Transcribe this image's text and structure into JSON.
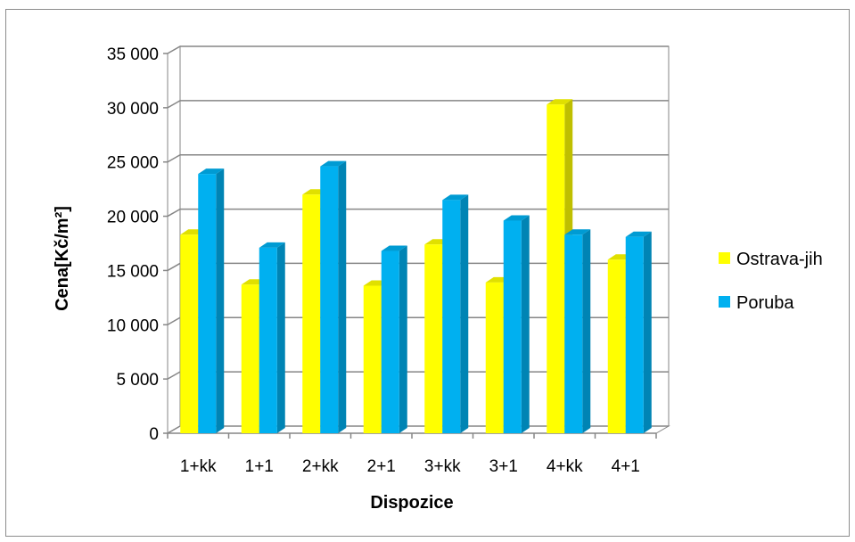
{
  "chart_data": {
    "type": "bar",
    "style": "3d-clustered-column",
    "categories": [
      "1+kk",
      "1+1",
      "2+kk",
      "2+1",
      "3+kk",
      "3+1",
      "4+kk",
      "4+1"
    ],
    "series": [
      {
        "name": "Ostrava-jih",
        "color": "#ffff00",
        "values": [
          18300,
          13700,
          22000,
          13600,
          17400,
          13900,
          30300,
          16000
        ]
      },
      {
        "name": "Poruba",
        "color": "#00b0f0",
        "values": [
          23900,
          17100,
          24600,
          16800,
          21500,
          19600,
          18300,
          18100
        ]
      }
    ],
    "xlabel": "Dispozice",
    "ylabel": "Cena[Kč/m²]",
    "ylim": [
      0,
      35000
    ],
    "yticks": [
      "0",
      "5 000",
      "10 000",
      "15 000",
      "20 000",
      "25 000",
      "30 000",
      "35 000"
    ],
    "grid": true,
    "legend": "right"
  }
}
